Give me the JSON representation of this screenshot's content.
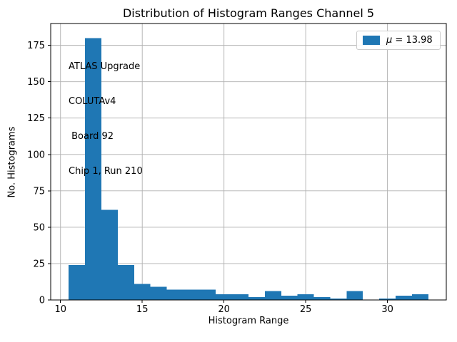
{
  "chart_data": {
    "type": "bar",
    "subtype": "histogram",
    "title": "Distribution of Histogram Ranges Channel 5",
    "xlabel": "Histogram Range",
    "ylabel": "No. Histograms",
    "bin_start": 10.5,
    "bin_width": 1,
    "counts": [
      24,
      180,
      62,
      24,
      11,
      9,
      7,
      7,
      7,
      4,
      4,
      2,
      6,
      3,
      4,
      2,
      1,
      6,
      0,
      1,
      3,
      4
    ],
    "xticks": [
      10,
      15,
      20,
      25,
      30
    ],
    "yticks": [
      0,
      25,
      50,
      75,
      100,
      125,
      150,
      175
    ],
    "xlim": [
      9.4,
      33.6
    ],
    "ylim": [
      0,
      190
    ],
    "grid": true,
    "bar_color": "#1f77b4",
    "grid_color": "#b0b0b0",
    "legend": {
      "position": "upper right",
      "mu_symbol": "μ",
      "value_text": " = 13.98",
      "full_label": "μ = 13.98"
    },
    "annotation": {
      "line1": "ATLAS Upgrade",
      "line2": "COLUTAv4",
      "line3": " Board 92",
      "line4": "Chip 1, Run 210"
    }
  }
}
